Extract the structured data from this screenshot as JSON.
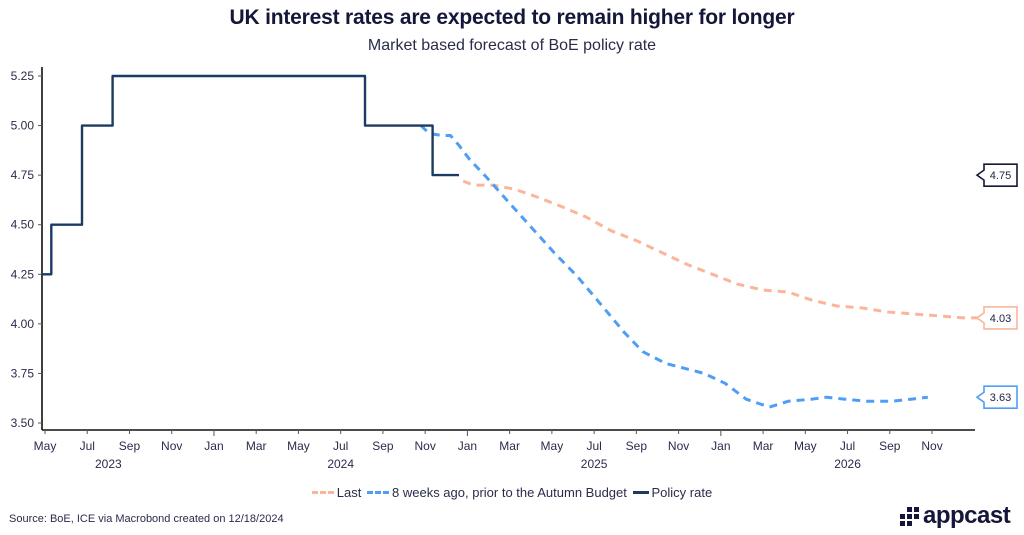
{
  "header": {
    "title": "UK interest rates are expected to remain higher for longer",
    "subtitle": "Market based forecast of BoE policy rate"
  },
  "footer": {
    "source": "Source: BoE, ICE via Macrobond created on 12/18/2024",
    "logo_text": "appcast"
  },
  "chart_data": {
    "type": "line",
    "title": "UK interest rates are expected to remain higher for longer",
    "subtitle": "Market based forecast of BoE policy rate",
    "xlabel": "",
    "ylabel": "",
    "ylim": [
      3.5,
      5.25
    ],
    "xlim": [
      "2023-05",
      "2026-12"
    ],
    "grid": false,
    "legend_position": "bottom",
    "yticks": [
      "3.50",
      "3.75",
      "4.00",
      "4.25",
      "4.50",
      "4.75",
      "5.00",
      "5.25"
    ],
    "ytick_values": [
      3.5,
      3.75,
      4.0,
      4.25,
      4.5,
      4.75,
      5.0,
      5.25
    ],
    "xticks": [
      {
        "label": "May",
        "m": 0
      },
      {
        "label": "Jul",
        "m": 2
      },
      {
        "label": "Sep",
        "m": 4
      },
      {
        "label": "Nov",
        "m": 6
      },
      {
        "label": "Jan",
        "m": 8
      },
      {
        "label": "Mar",
        "m": 10
      },
      {
        "label": "May",
        "m": 12
      },
      {
        "label": "Jul",
        "m": 14
      },
      {
        "label": "Sep",
        "m": 16
      },
      {
        "label": "Nov",
        "m": 18
      },
      {
        "label": "Jan",
        "m": 20
      },
      {
        "label": "Mar",
        "m": 22
      },
      {
        "label": "May",
        "m": 24
      },
      {
        "label": "Jul",
        "m": 26
      },
      {
        "label": "Sep",
        "m": 28
      },
      {
        "label": "Nov",
        "m": 30
      },
      {
        "label": "Jan",
        "m": 32
      },
      {
        "label": "Mar",
        "m": 34
      },
      {
        "label": "May",
        "m": 36
      },
      {
        "label": "Jul",
        "m": 38
      },
      {
        "label": "Sep",
        "m": 40
      },
      {
        "label": "Nov",
        "m": 42
      }
    ],
    "year_labels": [
      {
        "label": "2023",
        "m": 3
      },
      {
        "label": "2024",
        "m": 14
      },
      {
        "label": "2025",
        "m": 26
      },
      {
        "label": "2026",
        "m": 38
      }
    ],
    "x_unit": "months since May 2023",
    "series": [
      {
        "name": "Last",
        "color": "#fbb59a",
        "style": "dashed",
        "end_label": "4.03",
        "points": [
          [
            19.8,
            4.72
          ],
          [
            20.3,
            4.7
          ],
          [
            21.2,
            4.7
          ],
          [
            22.2,
            4.68
          ],
          [
            23.3,
            4.64
          ],
          [
            24.5,
            4.59
          ],
          [
            25.6,
            4.54
          ],
          [
            26.8,
            4.47
          ],
          [
            28.0,
            4.42
          ],
          [
            29.2,
            4.36
          ],
          [
            30.4,
            4.3
          ],
          [
            31.6,
            4.25
          ],
          [
            32.8,
            4.2
          ],
          [
            34.0,
            4.17
          ],
          [
            35.2,
            4.16
          ],
          [
            36.3,
            4.12
          ],
          [
            37.5,
            4.09
          ],
          [
            38.7,
            4.08
          ],
          [
            39.9,
            4.06
          ],
          [
            41.1,
            4.05
          ],
          [
            42.3,
            4.04
          ],
          [
            43.5,
            4.03
          ],
          [
            44.8,
            4.03
          ],
          [
            46.0,
            4.03
          ]
        ]
      },
      {
        "name": "8 weeks ago, prior to the Autumn Budget",
        "color": "#4f9ef5",
        "style": "dashed",
        "end_label": "3.63",
        "points": [
          [
            17.8,
            5.0
          ],
          [
            18.2,
            4.96
          ],
          [
            18.8,
            4.95
          ],
          [
            19.2,
            4.95
          ],
          [
            19.6,
            4.9
          ],
          [
            20.1,
            4.83
          ],
          [
            20.9,
            4.74
          ],
          [
            21.9,
            4.62
          ],
          [
            23.0,
            4.49
          ],
          [
            24.1,
            4.36
          ],
          [
            25.2,
            4.24
          ],
          [
            26.3,
            4.1
          ],
          [
            27.4,
            3.96
          ],
          [
            28.3,
            3.86
          ],
          [
            29.4,
            3.8
          ],
          [
            30.5,
            3.77
          ],
          [
            31.2,
            3.75
          ],
          [
            32.2,
            3.7
          ],
          [
            33.2,
            3.62
          ],
          [
            34.3,
            3.58
          ],
          [
            35.2,
            3.61
          ],
          [
            36.3,
            3.62
          ],
          [
            37.0,
            3.63
          ],
          [
            37.9,
            3.62
          ],
          [
            38.9,
            3.61
          ],
          [
            40.1,
            3.61
          ],
          [
            41.0,
            3.62
          ],
          [
            41.8,
            3.63
          ]
        ]
      },
      {
        "name": "Policy rate",
        "color": "#1d3a63",
        "style": "solid",
        "end_label": "4.75",
        "steps": [
          [
            -0.15,
            4.25
          ],
          [
            0.3,
            4.25
          ],
          [
            0.3,
            4.5
          ],
          [
            1.75,
            4.5
          ],
          [
            1.75,
            5.0
          ],
          [
            3.2,
            5.0
          ],
          [
            3.2,
            5.25
          ],
          [
            15.15,
            5.25
          ],
          [
            15.15,
            5.0
          ],
          [
            18.35,
            5.0
          ],
          [
            18.35,
            4.75
          ],
          [
            19.6,
            4.75
          ]
        ]
      }
    ],
    "end_labels": [
      {
        "series": "Policy rate",
        "value": 4.75,
        "text": "4.75",
        "color": "#15173a"
      },
      {
        "series": "Last",
        "value": 4.03,
        "text": "4.03",
        "color": "#fbb59a"
      },
      {
        "series": "8 weeks ago, prior to the Autumn Budget",
        "value": 3.63,
        "text": "3.63",
        "color": "#4f9ef5"
      }
    ],
    "legend": [
      {
        "label": "Last",
        "color": "#fbb59a",
        "style": "dashed"
      },
      {
        "label": "8 weeks ago, prior to the Autumn Budget",
        "color": "#4f9ef5",
        "style": "dashed"
      },
      {
        "label": "Policy rate",
        "color": "#1d3a63",
        "style": "solid"
      }
    ]
  }
}
